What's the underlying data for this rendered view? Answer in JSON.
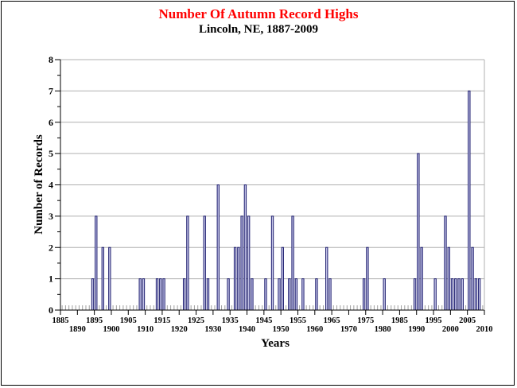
{
  "chart_data": {
    "type": "bar",
    "title": "Number Of Autumn Record Highs",
    "subtitle": "Lincoln, NE, 1887-2009",
    "xlabel": "Years",
    "ylabel": "Number of Records",
    "xlim": [
      1885,
      2010
    ],
    "ylim": [
      0,
      8
    ],
    "x_ticks": [
      1885,
      1890,
      1895,
      1900,
      1905,
      1910,
      1915,
      1920,
      1925,
      1930,
      1935,
      1940,
      1945,
      1950,
      1955,
      1960,
      1965,
      1970,
      1975,
      1980,
      1985,
      1990,
      1995,
      2000,
      2005,
      2010
    ],
    "y_ticks": [
      0,
      1,
      2,
      3,
      4,
      5,
      6,
      7,
      8
    ],
    "grid": true,
    "bars": [
      {
        "year": 1894,
        "value": 1
      },
      {
        "year": 1895,
        "value": 3
      },
      {
        "year": 1897,
        "value": 2
      },
      {
        "year": 1899,
        "value": 2
      },
      {
        "year": 1908,
        "value": 1
      },
      {
        "year": 1909,
        "value": 1
      },
      {
        "year": 1913,
        "value": 1
      },
      {
        "year": 1914,
        "value": 1
      },
      {
        "year": 1915,
        "value": 1
      },
      {
        "year": 1921,
        "value": 1
      },
      {
        "year": 1922,
        "value": 3
      },
      {
        "year": 1927,
        "value": 3
      },
      {
        "year": 1928,
        "value": 1
      },
      {
        "year": 1931,
        "value": 4
      },
      {
        "year": 1934,
        "value": 1
      },
      {
        "year": 1936,
        "value": 2
      },
      {
        "year": 1937,
        "value": 2
      },
      {
        "year": 1938,
        "value": 3
      },
      {
        "year": 1939,
        "value": 4
      },
      {
        "year": 1940,
        "value": 3
      },
      {
        "year": 1941,
        "value": 1
      },
      {
        "year": 1945,
        "value": 1
      },
      {
        "year": 1947,
        "value": 3
      },
      {
        "year": 1949,
        "value": 1
      },
      {
        "year": 1950,
        "value": 2
      },
      {
        "year": 1952,
        "value": 1
      },
      {
        "year": 1953,
        "value": 3
      },
      {
        "year": 1954,
        "value": 1
      },
      {
        "year": 1956,
        "value": 1
      },
      {
        "year": 1960,
        "value": 1
      },
      {
        "year": 1963,
        "value": 2
      },
      {
        "year": 1964,
        "value": 1
      },
      {
        "year": 1974,
        "value": 1
      },
      {
        "year": 1975,
        "value": 2
      },
      {
        "year": 1980,
        "value": 1
      },
      {
        "year": 1989,
        "value": 1
      },
      {
        "year": 1990,
        "value": 5
      },
      {
        "year": 1991,
        "value": 2
      },
      {
        "year": 1995,
        "value": 1
      },
      {
        "year": 1998,
        "value": 3
      },
      {
        "year": 1999,
        "value": 2
      },
      {
        "year": 2000,
        "value": 1
      },
      {
        "year": 2001,
        "value": 1
      },
      {
        "year": 2002,
        "value": 1
      },
      {
        "year": 2003,
        "value": 1
      },
      {
        "year": 2005,
        "value": 7
      },
      {
        "year": 2006,
        "value": 2
      },
      {
        "year": 2007,
        "value": 1
      },
      {
        "year": 2008,
        "value": 1
      }
    ],
    "colors": {
      "title": "#ff0000",
      "bar_fill": "#c8c8ea",
      "bar_stroke": "#1c1c6e",
      "grid": "#b0b0b0",
      "axis": "#000000",
      "zero_ticks": "#a0a0a0"
    }
  }
}
